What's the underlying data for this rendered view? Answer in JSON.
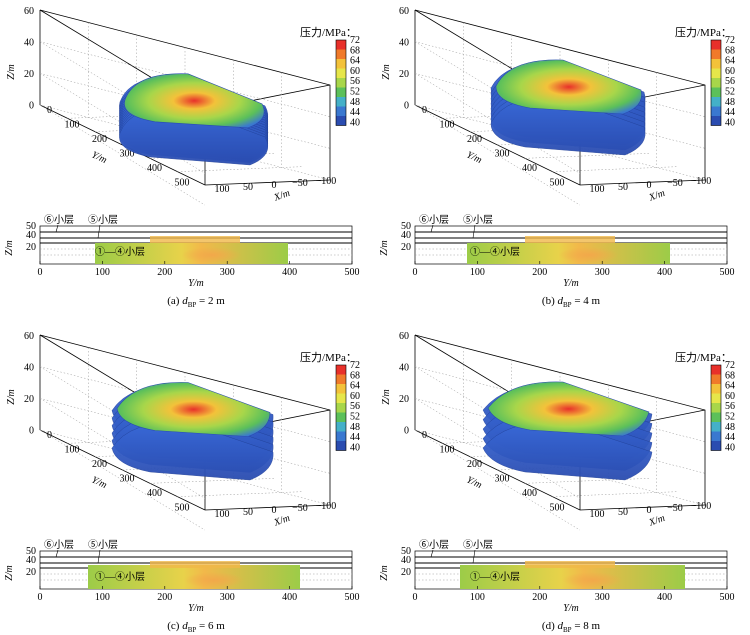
{
  "colorbar": {
    "title": "压力/MPa：",
    "ticks": [
      "72",
      "68",
      "64",
      "60",
      "56",
      "52",
      "48",
      "44",
      "40"
    ],
    "colors": [
      "#e8302a",
      "#f07a2a",
      "#f3c23a",
      "#e6e64a",
      "#a8d64a",
      "#5cc05a",
      "#44b0c8",
      "#3a78d0",
      "#2a4cb0"
    ]
  },
  "axes3d": {
    "z_label": "Z/m",
    "z_ticks": [
      "60",
      "40",
      "20",
      "0"
    ],
    "y_label": "Y/m",
    "y_ticks": [
      "0",
      "100",
      "200",
      "300",
      "400",
      "500"
    ],
    "x_label": "X/m",
    "x_ticks": [
      "100",
      "50",
      "0",
      "−50",
      "−100"
    ]
  },
  "section": {
    "layer6": "⑥小层",
    "layer5": "⑤小层",
    "layer14": "①—④小层",
    "z_label": "Z/m",
    "z_ticks": [
      "50",
      "40",
      "20"
    ],
    "y_label": "Y/m",
    "y_ticks": [
      "0",
      "100",
      "200",
      "300",
      "400",
      "500"
    ]
  },
  "panels": [
    {
      "caption_pre": "(a) ",
      "d": "d",
      "sub": "BP",
      "caption_post": " = 2 m"
    },
    {
      "caption_pre": "(b) ",
      "d": "d",
      "sub": "BP",
      "caption_post": " = 4 m"
    },
    {
      "caption_pre": "(c) ",
      "d": "d",
      "sub": "BP",
      "caption_post": " = 6 m"
    },
    {
      "caption_pre": "(d) ",
      "d": "d",
      "sub": "BP",
      "caption_post": " = 8 m"
    }
  ]
}
